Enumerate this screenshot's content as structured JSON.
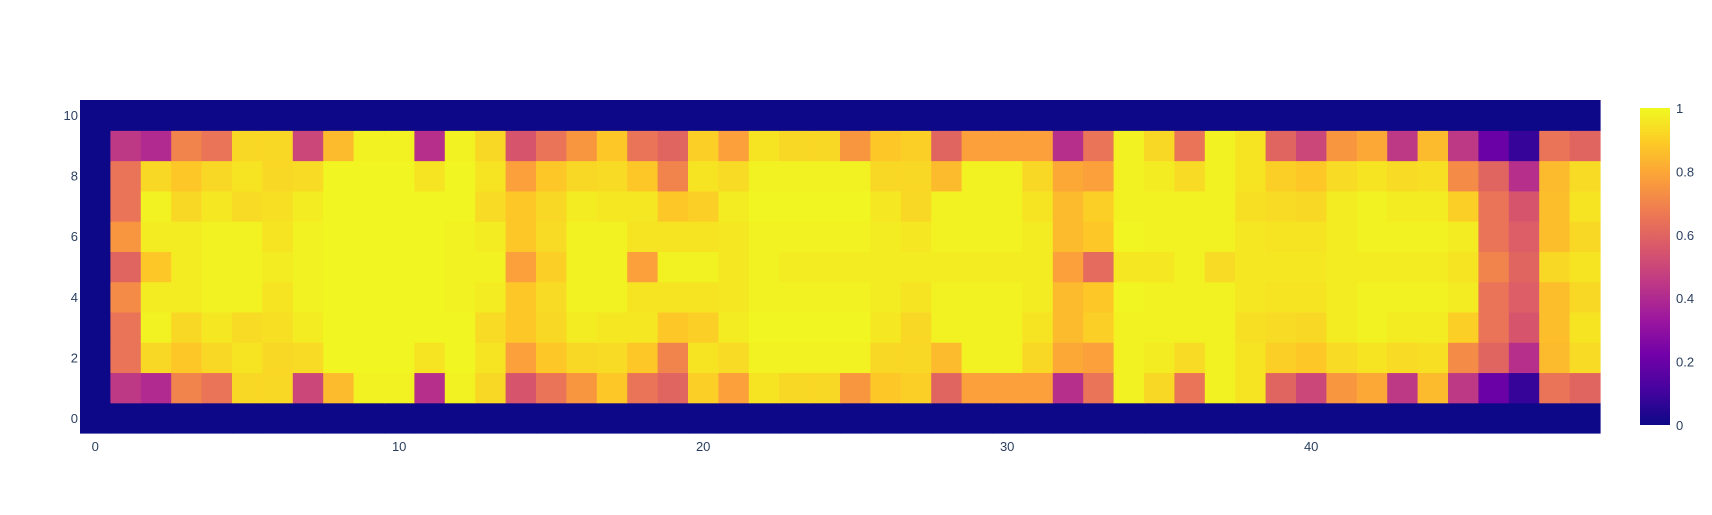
{
  "chart_data": {
    "type": "heatmap",
    "title": "",
    "xlabel": "",
    "ylabel": "",
    "xlim": [
      -0.5,
      49.5
    ],
    "ylim": [
      -0.5,
      10.5
    ],
    "x_ticks": [
      0,
      10,
      20,
      30,
      40
    ],
    "y_ticks": [
      0,
      2,
      4,
      6,
      8,
      10
    ],
    "colorscale": [
      "#0d0887",
      "#46039f",
      "#7201a8",
      "#9c179e",
      "#bd3786",
      "#d8576b",
      "#ed7953",
      "#fb9f3a",
      "#fdca26",
      "#f0f921"
    ],
    "colorbar": {
      "min": 0,
      "max": 1,
      "ticks": [
        0,
        0.2,
        0.4,
        0.6,
        0.8,
        1
      ]
    },
    "z": [
      [
        0,
        0,
        0,
        0,
        0,
        0,
        0,
        0,
        0,
        0,
        0,
        0,
        0,
        0,
        0,
        0,
        0,
        0,
        0,
        0,
        0,
        0,
        0,
        0,
        0,
        0,
        0,
        0,
        0,
        0,
        0,
        0,
        0,
        0,
        0,
        0,
        0,
        0,
        0,
        0,
        0,
        0,
        0,
        0,
        0,
        0,
        0,
        0,
        0,
        0
      ],
      [
        0,
        0.45,
        0.4,
        0.7,
        0.65,
        0.92,
        0.92,
        0.5,
        0.85,
        0.98,
        0.98,
        0.42,
        0.98,
        0.92,
        0.55,
        0.65,
        0.75,
        0.88,
        0.65,
        0.6,
        0.9,
        0.78,
        0.95,
        0.92,
        0.92,
        0.75,
        0.88,
        0.9,
        0.6,
        0.78,
        0.78,
        0.78,
        0.42,
        0.65,
        0.98,
        0.92,
        0.65,
        0.98,
        0.95,
        0.6,
        0.5,
        0.75,
        0.8,
        0.45,
        0.85,
        0.45,
        0.2,
        0.08,
        0.65,
        0.6
      ],
      [
        0,
        0.65,
        0.92,
        0.88,
        0.92,
        0.95,
        0.92,
        0.93,
        0.99,
        0.99,
        0.99,
        0.95,
        0.99,
        0.95,
        0.78,
        0.88,
        0.92,
        0.93,
        0.88,
        0.7,
        0.95,
        0.93,
        0.98,
        0.98,
        0.98,
        0.98,
        0.92,
        0.92,
        0.85,
        0.98,
        0.98,
        0.92,
        0.8,
        0.78,
        0.98,
        0.97,
        0.93,
        0.98,
        0.95,
        0.9,
        0.88,
        0.93,
        0.95,
        0.93,
        0.94,
        0.72,
        0.6,
        0.42,
        0.85,
        0.93
      ],
      [
        0,
        0.65,
        0.98,
        0.92,
        0.96,
        0.93,
        0.94,
        0.97,
        0.99,
        0.99,
        0.99,
        0.99,
        0.99,
        0.93,
        0.88,
        0.92,
        0.97,
        0.96,
        0.96,
        0.88,
        0.9,
        0.97,
        0.99,
        0.99,
        0.99,
        0.99,
        0.96,
        0.92,
        0.98,
        0.98,
        0.98,
        0.95,
        0.85,
        0.9,
        0.98,
        0.98,
        0.98,
        0.98,
        0.94,
        0.93,
        0.92,
        0.97,
        0.98,
        0.97,
        0.97,
        0.9,
        0.65,
        0.55,
        0.86,
        0.95
      ],
      [
        0,
        0.72,
        0.97,
        0.97,
        0.98,
        0.98,
        0.95,
        0.98,
        0.99,
        0.99,
        0.99,
        0.99,
        0.98,
        0.97,
        0.88,
        0.93,
        0.98,
        0.98,
        0.95,
        0.95,
        0.95,
        0.96,
        0.98,
        0.98,
        0.98,
        0.98,
        0.97,
        0.95,
        0.98,
        0.98,
        0.98,
        0.97,
        0.85,
        0.88,
        0.99,
        0.98,
        0.98,
        0.98,
        0.96,
        0.95,
        0.95,
        0.97,
        0.98,
        0.98,
        0.98,
        0.97,
        0.65,
        0.58,
        0.86,
        0.92
      ],
      [
        0,
        0.6,
        0.88,
        0.97,
        0.98,
        0.98,
        0.97,
        0.98,
        0.99,
        0.99,
        0.99,
        0.99,
        0.98,
        0.98,
        0.78,
        0.9,
        0.98,
        0.98,
        0.78,
        0.98,
        0.98,
        0.96,
        0.98,
        0.97,
        0.97,
        0.97,
        0.97,
        0.97,
        0.97,
        0.97,
        0.97,
        0.97,
        0.78,
        0.62,
        0.96,
        0.96,
        0.98,
        0.93,
        0.96,
        0.96,
        0.96,
        0.97,
        0.97,
        0.97,
        0.97,
        0.95,
        0.7,
        0.6,
        0.92,
        0.95
      ],
      [
        0,
        0.75,
        0.97,
        0.97,
        0.98,
        0.98,
        0.95,
        0.98,
        0.99,
        0.99,
        0.99,
        0.99,
        0.98,
        0.97,
        0.88,
        0.93,
        0.98,
        0.98,
        0.95,
        0.95,
        0.95,
        0.96,
        0.98,
        0.98,
        0.98,
        0.98,
        0.97,
        0.96,
        0.98,
        0.98,
        0.98,
        0.97,
        0.85,
        0.88,
        0.99,
        0.98,
        0.98,
        0.98,
        0.96,
        0.95,
        0.95,
        0.97,
        0.98,
        0.98,
        0.98,
        0.97,
        0.65,
        0.58,
        0.86,
        0.92
      ],
      [
        0,
        0.65,
        0.98,
        0.92,
        0.96,
        0.93,
        0.94,
        0.97,
        0.99,
        0.99,
        0.99,
        0.99,
        0.99,
        0.93,
        0.88,
        0.92,
        0.97,
        0.96,
        0.96,
        0.88,
        0.9,
        0.97,
        0.99,
        0.99,
        0.99,
        0.99,
        0.96,
        0.92,
        0.98,
        0.98,
        0.98,
        0.95,
        0.85,
        0.9,
        0.98,
        0.98,
        0.98,
        0.98,
        0.94,
        0.93,
        0.92,
        0.97,
        0.98,
        0.97,
        0.97,
        0.9,
        0.65,
        0.55,
        0.86,
        0.95
      ],
      [
        0,
        0.65,
        0.92,
        0.88,
        0.92,
        0.95,
        0.92,
        0.93,
        0.99,
        0.99,
        0.99,
        0.95,
        0.99,
        0.95,
        0.78,
        0.88,
        0.92,
        0.93,
        0.88,
        0.7,
        0.95,
        0.93,
        0.98,
        0.98,
        0.98,
        0.98,
        0.92,
        0.92,
        0.85,
        0.98,
        0.98,
        0.92,
        0.8,
        0.78,
        0.98,
        0.97,
        0.93,
        0.98,
        0.95,
        0.9,
        0.88,
        0.93,
        0.95,
        0.93,
        0.94,
        0.72,
        0.6,
        0.42,
        0.85,
        0.93
      ],
      [
        0,
        0.45,
        0.4,
        0.7,
        0.65,
        0.92,
        0.92,
        0.5,
        0.85,
        0.98,
        0.98,
        0.42,
        0.98,
        0.92,
        0.55,
        0.65,
        0.75,
        0.88,
        0.65,
        0.6,
        0.9,
        0.78,
        0.95,
        0.92,
        0.92,
        0.75,
        0.88,
        0.9,
        0.6,
        0.78,
        0.78,
        0.78,
        0.42,
        0.65,
        0.98,
        0.92,
        0.65,
        0.98,
        0.95,
        0.6,
        0.5,
        0.75,
        0.8,
        0.45,
        0.85,
        0.45,
        0.2,
        0.08,
        0.65,
        0.6
      ],
      [
        0,
        0,
        0,
        0,
        0,
        0,
        0,
        0,
        0,
        0,
        0,
        0,
        0,
        0,
        0,
        0,
        0,
        0,
        0,
        0,
        0,
        0,
        0,
        0,
        0,
        0,
        0,
        0,
        0,
        0,
        0,
        0,
        0,
        0,
        0,
        0,
        0,
        0,
        0,
        0,
        0,
        0,
        0,
        0,
        0,
        0,
        0,
        0,
        0,
        0
      ]
    ]
  }
}
